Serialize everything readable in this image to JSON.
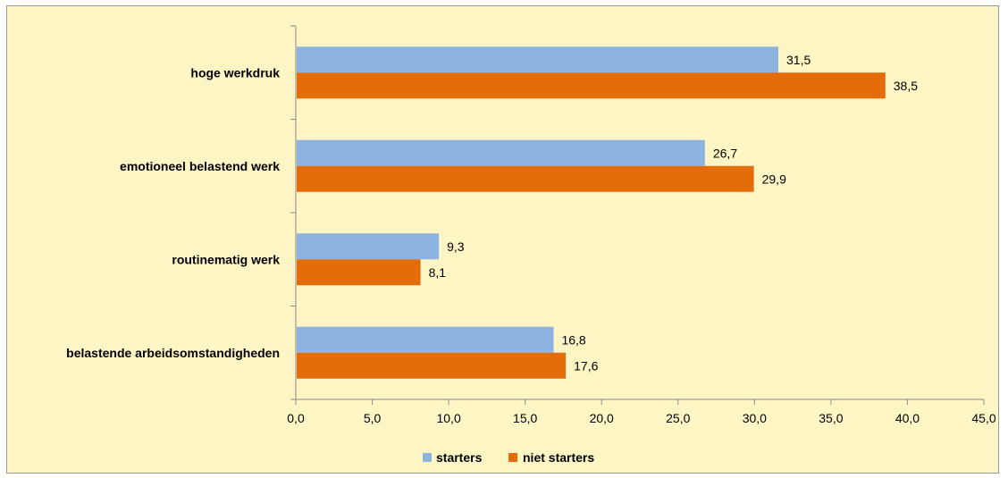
{
  "chart_data": {
    "type": "bar",
    "orientation": "horizontal",
    "categories": [
      "hoge werkdruk",
      "emotioneel belastend werk",
      "routinematig werk",
      "belastende arbeidsomstandigheden"
    ],
    "series": [
      {
        "name": "starters",
        "values": [
          31.5,
          26.7,
          9.3,
          16.8
        ],
        "color": "#8db3e2",
        "labels": [
          "31,5",
          "26,7",
          "9,3",
          "16,8"
        ]
      },
      {
        "name": "niet starters",
        "values": [
          38.5,
          29.9,
          8.1,
          17.6
        ],
        "color": "#e46c0a",
        "labels": [
          "38,5",
          "29,9",
          "8,1",
          "17,6"
        ]
      }
    ],
    "xlim": [
      0,
      45
    ],
    "xticks": [
      "0,0",
      "5,0",
      "10,0",
      "15,0",
      "20,0",
      "25,0",
      "30,0",
      "35,0",
      "40,0",
      "45,0"
    ],
    "grid": false,
    "legend_position": "bottom",
    "background": "#fdf5c3"
  }
}
